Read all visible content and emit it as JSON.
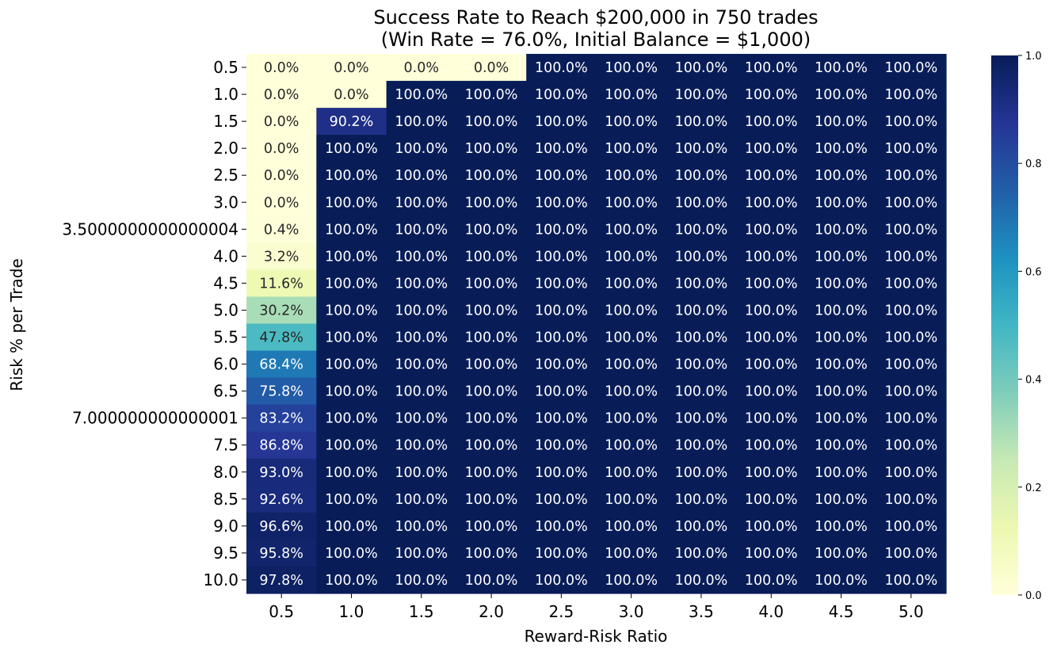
{
  "chart_data": {
    "type": "heatmap",
    "title": "Success Rate to Reach $200,000 in 750 trades",
    "subtitle": "(Win Rate = 76.0%, Initial Balance = $1,000)",
    "xlabel": "Reward-Risk Ratio",
    "ylabel": "Risk % per Trade",
    "x_categories": [
      "0.5",
      "1.0",
      "1.5",
      "2.0",
      "2.5",
      "3.0",
      "3.5",
      "4.0",
      "4.5",
      "5.0"
    ],
    "y_categories": [
      "0.5",
      "1.0",
      "1.5",
      "2.0",
      "2.5",
      "3.0",
      "3.5000000000000004",
      "4.0",
      "4.5",
      "5.0",
      "5.5",
      "6.0",
      "6.5",
      "7.000000000000001",
      "7.5",
      "8.0",
      "8.5",
      "9.0",
      "9.5",
      "10.0"
    ],
    "first_column_values": [
      0.0,
      0.0,
      0.0,
      0.0,
      0.0,
      0.0,
      0.004,
      0.032,
      0.116,
      0.302,
      0.478,
      0.684,
      0.758,
      0.832,
      0.868,
      0.93,
      0.926,
      0.966,
      0.958,
      0.978
    ],
    "values": [
      [
        0.0,
        0.0,
        0.0,
        0.0,
        1.0,
        1.0,
        1.0,
        1.0,
        1.0,
        1.0
      ],
      [
        0.0,
        0.0,
        1.0,
        1.0,
        1.0,
        1.0,
        1.0,
        1.0,
        1.0,
        1.0
      ],
      [
        0.0,
        0.902,
        1.0,
        1.0,
        1.0,
        1.0,
        1.0,
        1.0,
        1.0,
        1.0
      ],
      [
        0.0,
        1.0,
        1.0,
        1.0,
        1.0,
        1.0,
        1.0,
        1.0,
        1.0,
        1.0
      ],
      [
        0.0,
        1.0,
        1.0,
        1.0,
        1.0,
        1.0,
        1.0,
        1.0,
        1.0,
        1.0
      ],
      [
        0.0,
        1.0,
        1.0,
        1.0,
        1.0,
        1.0,
        1.0,
        1.0,
        1.0,
        1.0
      ],
      [
        0.004,
        1.0,
        1.0,
        1.0,
        1.0,
        1.0,
        1.0,
        1.0,
        1.0,
        1.0
      ],
      [
        0.032,
        1.0,
        1.0,
        1.0,
        1.0,
        1.0,
        1.0,
        1.0,
        1.0,
        1.0
      ],
      [
        0.116,
        1.0,
        1.0,
        1.0,
        1.0,
        1.0,
        1.0,
        1.0,
        1.0,
        1.0
      ],
      [
        0.302,
        1.0,
        1.0,
        1.0,
        1.0,
        1.0,
        1.0,
        1.0,
        1.0,
        1.0
      ],
      [
        0.478,
        1.0,
        1.0,
        1.0,
        1.0,
        1.0,
        1.0,
        1.0,
        1.0,
        1.0
      ],
      [
        0.684,
        1.0,
        1.0,
        1.0,
        1.0,
        1.0,
        1.0,
        1.0,
        1.0,
        1.0
      ],
      [
        0.758,
        1.0,
        1.0,
        1.0,
        1.0,
        1.0,
        1.0,
        1.0,
        1.0,
        1.0
      ],
      [
        0.832,
        1.0,
        1.0,
        1.0,
        1.0,
        1.0,
        1.0,
        1.0,
        1.0,
        1.0
      ],
      [
        0.868,
        1.0,
        1.0,
        1.0,
        1.0,
        1.0,
        1.0,
        1.0,
        1.0,
        1.0
      ],
      [
        0.93,
        1.0,
        1.0,
        1.0,
        1.0,
        1.0,
        1.0,
        1.0,
        1.0,
        1.0
      ],
      [
        0.926,
        1.0,
        1.0,
        1.0,
        1.0,
        1.0,
        1.0,
        1.0,
        1.0,
        1.0
      ],
      [
        0.966,
        1.0,
        1.0,
        1.0,
        1.0,
        1.0,
        1.0,
        1.0,
        1.0,
        1.0
      ],
      [
        0.958,
        1.0,
        1.0,
        1.0,
        1.0,
        1.0,
        1.0,
        1.0,
        1.0,
        1.0
      ],
      [
        0.978,
        1.0,
        1.0,
        1.0,
        1.0,
        1.0,
        1.0,
        1.0,
        1.0,
        1.0
      ]
    ],
    "cell_labels": [
      [
        "0.0%",
        "0.0%",
        "0.0%",
        "0.0%",
        "100.0%",
        "100.0%",
        "100.0%",
        "100.0%",
        "100.0%",
        "100.0%"
      ],
      [
        "0.0%",
        "0.0%",
        "100.0%",
        "100.0%",
        "100.0%",
        "100.0%",
        "100.0%",
        "100.0%",
        "100.0%",
        "100.0%"
      ],
      [
        "0.0%",
        "90.2%",
        "100.0%",
        "100.0%",
        "100.0%",
        "100.0%",
        "100.0%",
        "100.0%",
        "100.0%",
        "100.0%"
      ],
      [
        "0.0%",
        "100.0%",
        "100.0%",
        "100.0%",
        "100.0%",
        "100.0%",
        "100.0%",
        "100.0%",
        "100.0%",
        "100.0%"
      ],
      [
        "0.0%",
        "100.0%",
        "100.0%",
        "100.0%",
        "100.0%",
        "100.0%",
        "100.0%",
        "100.0%",
        "100.0%",
        "100.0%"
      ],
      [
        "0.0%",
        "100.0%",
        "100.0%",
        "100.0%",
        "100.0%",
        "100.0%",
        "100.0%",
        "100.0%",
        "100.0%",
        "100.0%"
      ],
      [
        "0.4%",
        "100.0%",
        "100.0%",
        "100.0%",
        "100.0%",
        "100.0%",
        "100.0%",
        "100.0%",
        "100.0%",
        "100.0%"
      ],
      [
        "3.2%",
        "100.0%",
        "100.0%",
        "100.0%",
        "100.0%",
        "100.0%",
        "100.0%",
        "100.0%",
        "100.0%",
        "100.0%"
      ],
      [
        "11.6%",
        "100.0%",
        "100.0%",
        "100.0%",
        "100.0%",
        "100.0%",
        "100.0%",
        "100.0%",
        "100.0%",
        "100.0%"
      ],
      [
        "30.2%",
        "100.0%",
        "100.0%",
        "100.0%",
        "100.0%",
        "100.0%",
        "100.0%",
        "100.0%",
        "100.0%",
        "100.0%"
      ],
      [
        "47.8%",
        "100.0%",
        "100.0%",
        "100.0%",
        "100.0%",
        "100.0%",
        "100.0%",
        "100.0%",
        "100.0%",
        "100.0%"
      ],
      [
        "68.4%",
        "100.0%",
        "100.0%",
        "100.0%",
        "100.0%",
        "100.0%",
        "100.0%",
        "100.0%",
        "100.0%",
        "100.0%"
      ],
      [
        "75.8%",
        "100.0%",
        "100.0%",
        "100.0%",
        "100.0%",
        "100.0%",
        "100.0%",
        "100.0%",
        "100.0%",
        "100.0%"
      ],
      [
        "83.2%",
        "100.0%",
        "100.0%",
        "100.0%",
        "100.0%",
        "100.0%",
        "100.0%",
        "100.0%",
        "100.0%",
        "100.0%"
      ],
      [
        "86.8%",
        "100.0%",
        "100.0%",
        "100.0%",
        "100.0%",
        "100.0%",
        "100.0%",
        "100.0%",
        "100.0%",
        "100.0%"
      ],
      [
        "93.0%",
        "100.0%",
        "100.0%",
        "100.0%",
        "100.0%",
        "100.0%",
        "100.0%",
        "100.0%",
        "100.0%",
        "100.0%"
      ],
      [
        "92.6%",
        "100.0%",
        "100.0%",
        "100.0%",
        "100.0%",
        "100.0%",
        "100.0%",
        "100.0%",
        "100.0%",
        "100.0%"
      ],
      [
        "96.6%",
        "100.0%",
        "100.0%",
        "100.0%",
        "100.0%",
        "100.0%",
        "100.0%",
        "100.0%",
        "100.0%",
        "100.0%"
      ],
      [
        "95.8%",
        "100.0%",
        "100.0%",
        "100.0%",
        "100.0%",
        "100.0%",
        "100.0%",
        "100.0%",
        "100.0%",
        "100.0%"
      ],
      [
        "97.8%",
        "100.0%",
        "100.0%",
        "100.0%",
        "100.0%",
        "100.0%",
        "100.0%",
        "100.0%",
        "100.0%",
        "100.0%"
      ]
    ],
    "colormap": "YlGnBu",
    "colormap_stops": [
      "#ffffd9",
      "#edf8b1",
      "#c7e9b4",
      "#7fcdbb",
      "#41b6c4",
      "#1d91c0",
      "#225ea8",
      "#253494",
      "#081d58"
    ],
    "vmin": 0.0,
    "vmax": 1.0,
    "colorbar_ticks": [
      "0.0",
      "0.2",
      "0.4",
      "0.6",
      "0.8",
      "1.0"
    ],
    "legend": "right"
  }
}
